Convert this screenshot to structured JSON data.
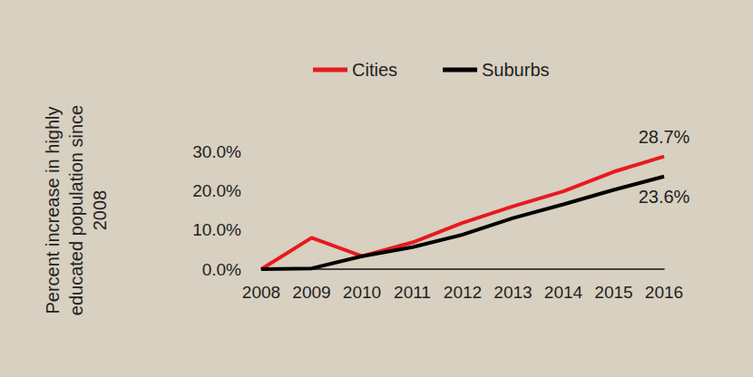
{
  "chart_data": {
    "type": "line",
    "y_label": "Percent increase in highly\neducated population since\n2008",
    "categories": [
      "2008",
      "2009",
      "2010",
      "2011",
      "2012",
      "2013",
      "2014",
      "2015",
      "2016"
    ],
    "series": [
      {
        "name": "Cities",
        "color": "#e8191f",
        "values": [
          0,
          8.0,
          3.3,
          6.8,
          11.8,
          16.0,
          19.8,
          24.8,
          28.7
        ],
        "value_labels": [
          null,
          null,
          null,
          null,
          null,
          null,
          null,
          null,
          "28.7%"
        ]
      },
      {
        "name": "Suburbs",
        "color": "#000000",
        "values": [
          0,
          0.2,
          3.3,
          5.6,
          8.8,
          13.0,
          16.5,
          20.2,
          23.6
        ],
        "value_labels": [
          null,
          null,
          null,
          null,
          null,
          null,
          null,
          null,
          "23.6%"
        ]
      }
    ],
    "ylim": [
      0,
      30
    ],
    "yticks": [
      {
        "value": 0,
        "label": "0.0%"
      },
      {
        "value": 10,
        "label": "10.0%"
      },
      {
        "value": 20,
        "label": "20.0%"
      },
      {
        "value": 30,
        "label": "30.0%"
      }
    ],
    "grid": false,
    "legend": "top",
    "data_labels": true
  }
}
